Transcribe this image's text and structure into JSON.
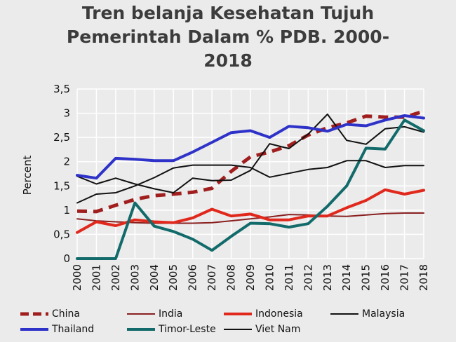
{
  "chart_data": {
    "type": "line",
    "title_lines": [
      "Tren belanja Kesehatan Tujuh",
      "Pemerintah Dalam % PDB. 2000-",
      "2018"
    ],
    "xlabel": "",
    "ylabel": "Percent",
    "ylim": [
      0,
      3.5
    ],
    "yticks": [
      "0",
      "0,5",
      "1",
      "1,5",
      "2",
      "2,5",
      "3",
      "3,5"
    ],
    "ytick_values": [
      0,
      0.5,
      1,
      1.5,
      2,
      2.5,
      3,
      3.5
    ],
    "grid": true,
    "legend_position": "bottom",
    "categories": [
      "2000",
      "2001",
      "2002",
      "2003",
      "2004",
      "2005",
      "2006",
      "2007",
      "2008",
      "2009",
      "2010",
      "2011",
      "2012",
      "2013",
      "2014",
      "2015",
      "2016",
      "2017",
      "2018"
    ],
    "series": [
      {
        "name": "China",
        "color": "#a01e1e",
        "dashed": true,
        "width": 5,
        "values": [
          0.98,
          0.97,
          1.1,
          1.22,
          1.3,
          1.33,
          1.37,
          1.45,
          1.8,
          2.1,
          2.2,
          2.33,
          2.55,
          2.7,
          2.8,
          2.94,
          2.92,
          2.92,
          3.04
        ]
      },
      {
        "name": "India",
        "color": "#8a2020",
        "dashed": false,
        "width": 2,
        "values": [
          0.82,
          0.78,
          0.76,
          0.74,
          0.73,
          0.73,
          0.73,
          0.74,
          0.78,
          0.82,
          0.86,
          0.91,
          0.9,
          0.88,
          0.87,
          0.9,
          0.93,
          0.94,
          0.94
        ]
      },
      {
        "name": "Indonesia",
        "color": "#e0281c",
        "dashed": false,
        "width": 4,
        "values": [
          0.54,
          0.76,
          0.68,
          0.8,
          0.76,
          0.74,
          0.84,
          1.02,
          0.88,
          0.92,
          0.8,
          0.8,
          0.88,
          0.88,
          1.05,
          1.2,
          1.42,
          1.33,
          1.41
        ]
      },
      {
        "name": "Malaysia",
        "color": "#111111",
        "dashed": false,
        "width": 2,
        "values": [
          1.7,
          1.54,
          1.66,
          1.54,
          1.44,
          1.36,
          1.66,
          1.61,
          1.62,
          1.82,
          2.37,
          2.27,
          2.57,
          2.98,
          2.44,
          2.36,
          2.68,
          2.72,
          2.61
        ]
      },
      {
        "name": "Thailand",
        "color": "#2e32c8",
        "dashed": false,
        "width": 4,
        "values": [
          1.72,
          1.66,
          2.07,
          2.05,
          2.02,
          2.02,
          2.2,
          2.4,
          2.6,
          2.64,
          2.5,
          2.73,
          2.7,
          2.63,
          2.77,
          2.74,
          2.86,
          2.95,
          2.9
        ]
      },
      {
        "name": "Timor-Leste",
        "color": "#126a6a",
        "dashed": false,
        "width": 4,
        "values": [
          0,
          0,
          0,
          1.15,
          0.67,
          0.56,
          0.4,
          0.17,
          0.46,
          0.73,
          0.72,
          0.65,
          0.72,
          1.08,
          1.5,
          2.28,
          2.26,
          2.86,
          2.64
        ]
      },
      {
        "name": "Viet Nam",
        "color": "#111111",
        "dashed": false,
        "width": 2,
        "values": [
          1.15,
          1.33,
          1.36,
          1.5,
          1.67,
          1.87,
          1.93,
          1.93,
          1.93,
          1.88,
          1.68,
          1.76,
          1.84,
          1.88,
          2.02,
          2.02,
          1.88,
          1.92,
          1.92
        ]
      }
    ]
  }
}
